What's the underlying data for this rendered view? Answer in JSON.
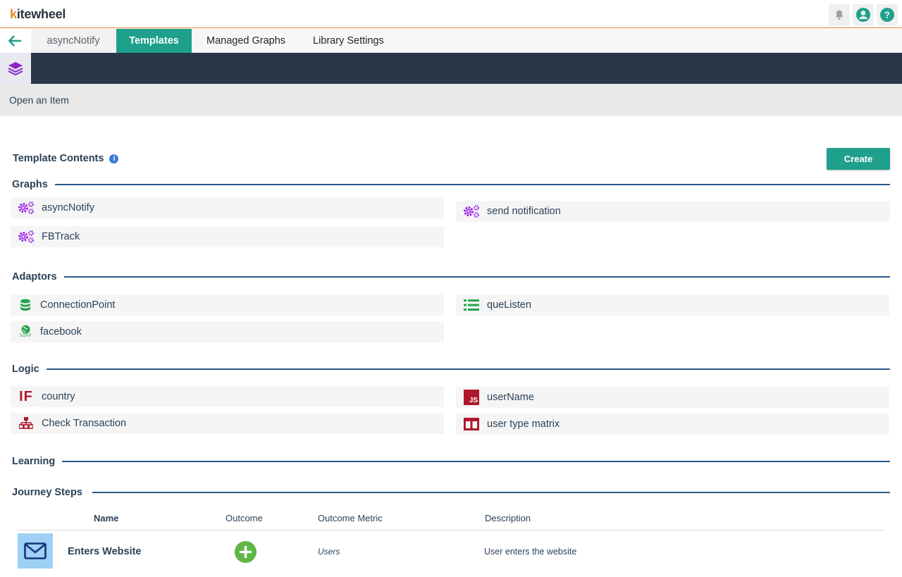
{
  "app": {
    "logo_k": "k",
    "logo_rest": "itewheel"
  },
  "header_icons": [
    "bell-icon",
    "user-circle-icon",
    "help-icon"
  ],
  "tabs": {
    "current_item": "asyncNotify",
    "templates": "Templates",
    "managed_graphs": "Managed Graphs",
    "library_settings": "Library Settings"
  },
  "open_item": "Open an Item",
  "template_contents": {
    "title": "Template Contents",
    "info": "i",
    "create_label": "Create"
  },
  "sections": {
    "graphs": "Graphs",
    "adaptors": "Adaptors",
    "logic": "Logic",
    "learning": "Learning",
    "journey_steps": "Journey Steps"
  },
  "graphs": [
    {
      "label": "asyncNotify",
      "icon": "cogs-icon"
    },
    {
      "label": "send notification",
      "icon": "cogs-icon"
    },
    {
      "label": "FBTrack",
      "icon": "cogs-icon"
    }
  ],
  "adaptors": [
    {
      "label": "ConnectionPoint",
      "icon": "database-icon"
    },
    {
      "label": "queListen",
      "icon": "list-icon"
    },
    {
      "label": "facebook",
      "icon": "soap-globe-icon",
      "icon_text": "SOAP"
    }
  ],
  "logic": [
    {
      "label": "country",
      "icon": "if-icon",
      "icon_text": "IF"
    },
    {
      "label": "userName",
      "icon": "javascript-icon",
      "icon_text": "JS"
    },
    {
      "label": "Check Transaction",
      "icon": "sitemap-icon"
    },
    {
      "label": "user type matrix",
      "icon": "matrix-icon"
    }
  ],
  "journey_table": {
    "headers": {
      "name": "Name",
      "outcome": "Outcome",
      "metric": "Outcome Metric",
      "description": "Description"
    },
    "rows": [
      {
        "name": "Enters Website",
        "metric": "Users",
        "description": "User enters the website"
      }
    ]
  },
  "colors": {
    "accent": "#1fa08c",
    "header_band": "#283747",
    "section_line": "#2a5a86",
    "graph_icon": "#9b1fe8",
    "adaptor_icon": "#27a54a",
    "logic_icon": "#b0162c",
    "outcome_green": "#5fb648"
  }
}
